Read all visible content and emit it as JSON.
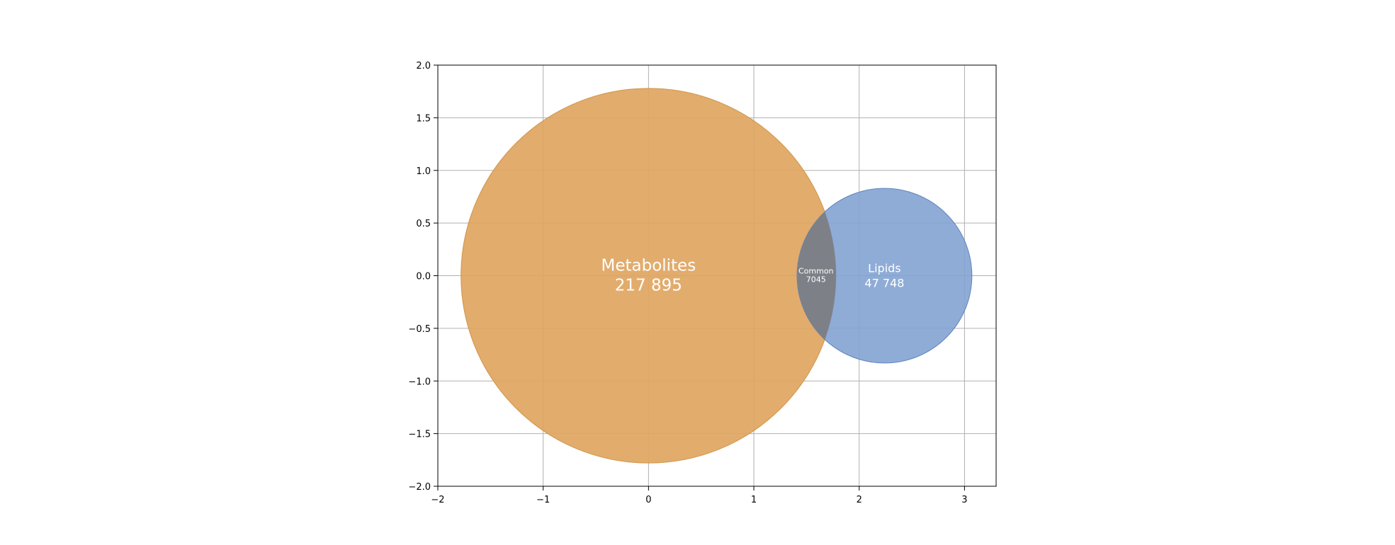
{
  "chart_data": {
    "type": "venn",
    "xlim": [
      -2,
      3.3
    ],
    "ylim": [
      -2,
      2
    ],
    "x_ticks": [
      -2,
      -1,
      0,
      1,
      2,
      3
    ],
    "y_ticks": [
      -2.0,
      -1.5,
      -1.0,
      -0.5,
      0.0,
      0.5,
      1.0,
      1.5,
      2.0
    ],
    "x_tick_labels": [
      "−2",
      "−1",
      "0",
      "1",
      "2",
      "3"
    ],
    "y_tick_labels": [
      "−2.0",
      "−1.5",
      "−1.0",
      "−0.5",
      "0.0",
      "0.5",
      "1.0",
      "1.5",
      "2.0"
    ],
    "grid": true,
    "sets": [
      {
        "name": "Metabolites",
        "count_label": "217 895",
        "count": 217895,
        "center": [
          0,
          0
        ],
        "radius": 1.78,
        "color": "#dfa561"
      },
      {
        "name": "Lipids",
        "count_label": "47 748",
        "count": 47748,
        "center": [
          2.24,
          0
        ],
        "radius": 0.83,
        "color": "#7fa1d1"
      }
    ],
    "intersection": {
      "name": "Common",
      "count_label": "7045",
      "count": 7045,
      "center": [
        1.59,
        0
      ],
      "color": "#7e8087"
    }
  }
}
